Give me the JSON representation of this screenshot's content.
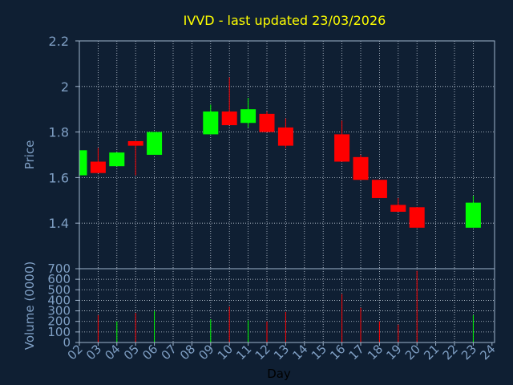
{
  "title": "IVVD - last updated 23/03/2026",
  "colors": {
    "background": "#0f1f33",
    "title": "#ffff00",
    "axis_text": "#7f9fc4",
    "frame": "#9fb4cc",
    "grid": "#c8d2de",
    "up": "#00ff00",
    "down": "#ff0000"
  },
  "chart_data": [
    {
      "type": "candlestick",
      "ylabel": "Price",
      "ylim": [
        1.2,
        2.2
      ],
      "yticks": [
        "2.2",
        "2",
        "1.8",
        "1.6",
        "1.4"
      ],
      "grid": true,
      "x_days": [
        "02",
        "03",
        "04",
        "05",
        "06",
        "07",
        "08",
        "09",
        "10",
        "11",
        "12",
        "13",
        "14",
        "15",
        "16",
        "17",
        "18",
        "19",
        "20",
        "21",
        "22",
        "23",
        "24"
      ],
      "candles": [
        {
          "day": "02",
          "open": 1.61,
          "high": 1.72,
          "low": 1.61,
          "close": 1.72
        },
        {
          "day": "03",
          "open": 1.67,
          "high": 1.73,
          "low": 1.62,
          "close": 1.62
        },
        {
          "day": "04",
          "open": 1.65,
          "high": 1.71,
          "low": 1.65,
          "close": 1.71
        },
        {
          "day": "05",
          "open": 1.76,
          "high": 1.76,
          "low": 1.61,
          "close": 1.74
        },
        {
          "day": "06",
          "open": 1.7,
          "high": 1.8,
          "low": 1.7,
          "close": 1.8
        },
        {
          "day": "09",
          "open": 1.79,
          "high": 1.92,
          "low": 1.79,
          "close": 1.89
        },
        {
          "day": "10",
          "open": 1.89,
          "high": 2.04,
          "low": 1.83,
          "close": 1.83
        },
        {
          "day": "11",
          "open": 1.84,
          "high": 1.95,
          "low": 1.82,
          "close": 1.9
        },
        {
          "day": "12",
          "open": 1.88,
          "high": 1.89,
          "low": 1.8,
          "close": 1.8
        },
        {
          "day": "13",
          "open": 1.82,
          "high": 1.86,
          "low": 1.73,
          "close": 1.74
        },
        {
          "day": "16",
          "open": 1.79,
          "high": 1.85,
          "low": 1.67,
          "close": 1.67
        },
        {
          "day": "17",
          "open": 1.69,
          "high": 1.7,
          "low": 1.59,
          "close": 1.59
        },
        {
          "day": "18",
          "open": 1.59,
          "high": 1.59,
          "low": 1.51,
          "close": 1.51
        },
        {
          "day": "19",
          "open": 1.48,
          "high": 1.51,
          "low": 1.45,
          "close": 1.45
        },
        {
          "day": "20",
          "open": 1.47,
          "high": 1.47,
          "low": 1.38,
          "close": 1.38
        },
        {
          "day": "23",
          "open": 1.38,
          "high": 1.52,
          "low": 1.38,
          "close": 1.49
        }
      ]
    },
    {
      "type": "bar",
      "ylabel": "Volume (0000)",
      "xlabel": "Day",
      "ylim": [
        0,
        700
      ],
      "yticks": [
        "700",
        "600",
        "500",
        "400",
        "300",
        "200",
        "100",
        "0"
      ],
      "grid": true,
      "x_days": [
        "02",
        "03",
        "04",
        "05",
        "06",
        "07",
        "08",
        "09",
        "10",
        "11",
        "12",
        "13",
        "14",
        "15",
        "16",
        "17",
        "18",
        "19",
        "20",
        "21",
        "22",
        "23",
        "24"
      ],
      "volumes": [
        {
          "day": "02",
          "value": 240,
          "color": "up"
        },
        {
          "day": "03",
          "value": 260,
          "color": "down"
        },
        {
          "day": "04",
          "value": 200,
          "color": "up"
        },
        {
          "day": "05",
          "value": 280,
          "color": "down"
        },
        {
          "day": "06",
          "value": 300,
          "color": "up"
        },
        {
          "day": "09",
          "value": 220,
          "color": "up"
        },
        {
          "day": "10",
          "value": 340,
          "color": "down"
        },
        {
          "day": "11",
          "value": 210,
          "color": "up"
        },
        {
          "day": "12",
          "value": 200,
          "color": "down"
        },
        {
          "day": "13",
          "value": 290,
          "color": "down"
        },
        {
          "day": "16",
          "value": 460,
          "color": "down"
        },
        {
          "day": "17",
          "value": 330,
          "color": "down"
        },
        {
          "day": "18",
          "value": 200,
          "color": "down"
        },
        {
          "day": "19",
          "value": 170,
          "color": "down"
        },
        {
          "day": "20",
          "value": 680,
          "color": "down"
        },
        {
          "day": "23",
          "value": 260,
          "color": "up"
        }
      ]
    }
  ]
}
